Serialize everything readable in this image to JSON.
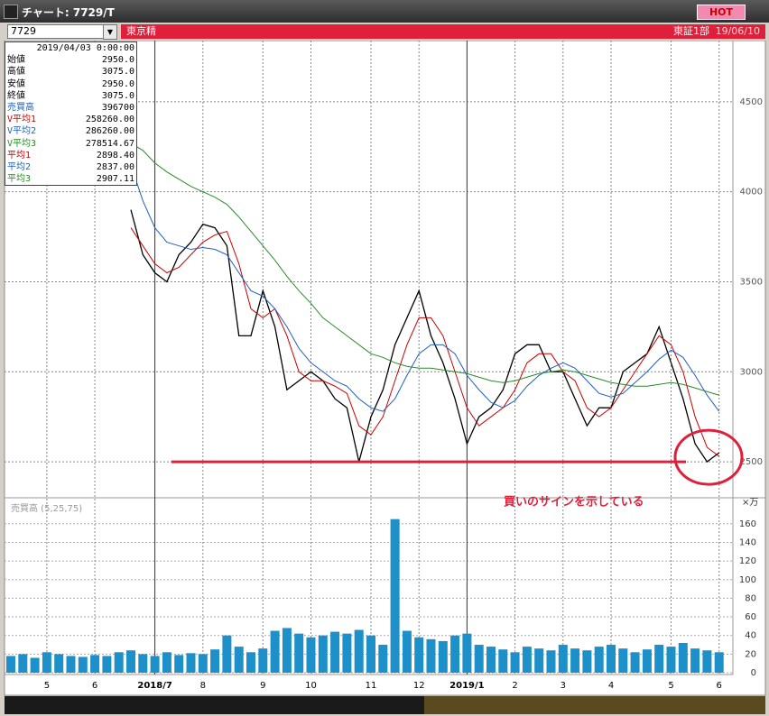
{
  "window": {
    "title": "チャート: 7729/T",
    "hot": "HOT"
  },
  "toolbar": {
    "code": "7729",
    "name": "東京精",
    "market": "東証1部",
    "date": "19/06/10"
  },
  "info_panel": {
    "datetime": "2019/04/03 0:00:00",
    "rows": [
      [
        "始値",
        "2950.0"
      ],
      [
        "高値",
        "3075.0"
      ],
      [
        "安値",
        "2950.0"
      ],
      [
        "終値",
        "3075.0"
      ],
      [
        "売買高",
        "396700"
      ],
      [
        "V平均1",
        "258260.00"
      ],
      [
        "V平均2",
        "286260.00"
      ],
      [
        "V平均3",
        "278514.67"
      ],
      [
        "平均1",
        "2898.40"
      ],
      [
        "平均2",
        "2837.00"
      ],
      [
        "平均3",
        "2907.11"
      ]
    ],
    "row_colors": [
      "#000000",
      "#000000",
      "#000000",
      "#000000",
      "#1f5fbf",
      "#cc0000",
      "#1f5fbf",
      "#2a8a2a",
      "#cc0000",
      "#1f5fbf",
      "#2a8a2a"
    ]
  },
  "chart_data": [
    {
      "type": "line",
      "categories": [
        null,
        null,
        null,
        "5",
        null,
        null,
        null,
        "6",
        null,
        null,
        null,
        null,
        "2018/7",
        null,
        null,
        null,
        "8",
        null,
        null,
        null,
        null,
        "9",
        null,
        null,
        null,
        "10",
        null,
        null,
        null,
        null,
        "11",
        null,
        null,
        null,
        "12",
        null,
        null,
        null,
        "2019/1",
        null,
        null,
        null,
        "2",
        null,
        null,
        null,
        "3",
        null,
        null,
        null,
        "4",
        null,
        null,
        null,
        null,
        "5",
        null,
        null,
        null,
        "6"
      ],
      "series": [
        {
          "name": "終値",
          "color": "#000000",
          "values": [
            null,
            null,
            null,
            null,
            null,
            null,
            null,
            null,
            null,
            null,
            3900,
            3650,
            3550,
            3500,
            3650,
            3720,
            3820,
            3800,
            3700,
            3200,
            3200,
            3450,
            3250,
            2900,
            2950,
            3000,
            2950,
            2850,
            2800,
            2500,
            2750,
            2900,
            3150,
            3300,
            3450,
            3200,
            3050,
            2850,
            2600,
            2750,
            2800,
            2900,
            3100,
            3150,
            3150,
            3000,
            3000,
            2850,
            2700,
            2800,
            2800,
            3000,
            3050,
            3100,
            3250,
            3050,
            2850,
            2600,
            2500,
            2550
          ]
        },
        {
          "name": "平均1",
          "color": "#cc0000",
          "values": [
            null,
            null,
            null,
            null,
            null,
            null,
            null,
            null,
            null,
            null,
            3800,
            3700,
            3600,
            3550,
            3580,
            3650,
            3720,
            3760,
            3780,
            3600,
            3350,
            3300,
            3350,
            3200,
            3000,
            2950,
            2950,
            2920,
            2880,
            2700,
            2650,
            2750,
            2950,
            3150,
            3300,
            3300,
            3200,
            3000,
            2800,
            2700,
            2750,
            2800,
            2900,
            3050,
            3100,
            3100,
            3000,
            2950,
            2800,
            2750,
            2800,
            2900,
            3000,
            3100,
            3200,
            3150,
            3000,
            2750,
            2580,
            2530
          ]
        },
        {
          "name": "平均2",
          "color": "#1f5fbf",
          "values": [
            null,
            null,
            null,
            null,
            null,
            null,
            null,
            null,
            null,
            null,
            4150,
            3950,
            3800,
            3720,
            3700,
            3680,
            3690,
            3680,
            3650,
            3550,
            3450,
            3420,
            3350,
            3250,
            3130,
            3050,
            3000,
            2950,
            2920,
            2850,
            2800,
            2780,
            2850,
            2980,
            3100,
            3150,
            3150,
            3100,
            2980,
            2900,
            2830,
            2800,
            2840,
            2920,
            2980,
            3020,
            3050,
            3020,
            2950,
            2880,
            2860,
            2880,
            2940,
            3000,
            3070,
            3120,
            3080,
            2980,
            2870,
            2780
          ]
        },
        {
          "name": "平均3",
          "color": "#2a8a2a",
          "values": [
            null,
            null,
            null,
            null,
            null,
            null,
            null,
            null,
            null,
            null,
            4270,
            4230,
            4160,
            4110,
            4070,
            4030,
            4000,
            3970,
            3930,
            3860,
            3780,
            3700,
            3620,
            3530,
            3450,
            3380,
            3300,
            3250,
            3200,
            3150,
            3100,
            3080,
            3050,
            3030,
            3020,
            3020,
            3010,
            3000,
            2990,
            2970,
            2950,
            2940,
            2950,
            2970,
            2990,
            3000,
            3010,
            3000,
            2980,
            2960,
            2940,
            2930,
            2920,
            2920,
            2930,
            2940,
            2930,
            2910,
            2890,
            2870
          ]
        }
      ],
      "ylim": [
        2310,
        4840
      ],
      "yticks": [
        2500,
        3000,
        3500,
        4000,
        4500
      ],
      "grid": true,
      "support_level": 2500,
      "annotation": "買いのサインを示している",
      "annotation_color": "#e0203a"
    },
    {
      "type": "bar",
      "title": "売買高 (5,25,75)",
      "unit": "×万",
      "color": "#1d8fc9",
      "values": [
        18,
        20,
        16,
        22,
        20,
        18,
        17,
        19,
        18,
        22,
        24,
        20,
        18,
        22,
        19,
        21,
        20,
        25,
        40,
        28,
        22,
        26,
        45,
        48,
        42,
        38,
        40,
        44,
        42,
        46,
        40,
        30,
        165,
        45,
        38,
        36,
        34,
        40,
        42,
        30,
        28,
        25,
        22,
        28,
        26,
        24,
        30,
        26,
        24,
        28,
        30,
        26,
        22,
        25,
        30,
        28,
        32,
        26,
        24,
        22
      ],
      "ylim": [
        0,
        185
      ],
      "yticks": [
        0,
        20,
        40,
        60,
        80,
        100,
        120,
        140,
        160
      ],
      "grid": true
    }
  ]
}
